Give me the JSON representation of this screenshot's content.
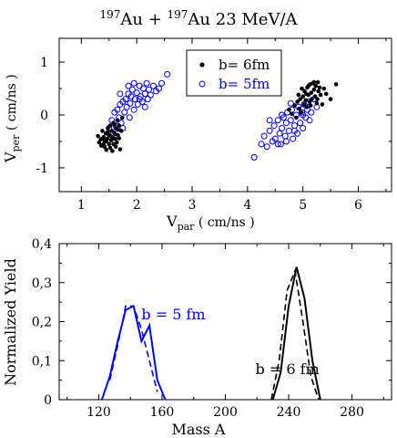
{
  "figure_title": {
    "sup1": "197",
    "el1": "Au",
    "plus": " + ",
    "sup2": "197",
    "el2": "Au",
    "rest": "  23 MeV/A"
  },
  "chart_data": [
    {
      "type": "scatter",
      "xlabel_main": "V",
      "xlabel_sub": "par",
      "xlabel_unit": " ( cm/ns )",
      "ylabel_main": "V",
      "ylabel_sub": "per",
      "ylabel_unit": " ( cm/ns )",
      "xlim": [
        0.6,
        6.6
      ],
      "ylim": [
        -1.45,
        1.45
      ],
      "xticks": [
        1,
        2,
        3,
        4,
        5,
        6
      ],
      "yticks": [
        -1,
        0,
        1
      ],
      "legend_position": "top-center",
      "series": [
        {
          "name": "b= 6fm",
          "marker": "filled-circle",
          "color": "#000000",
          "points": [
            [
              1.3,
              -0.4
            ],
            [
              1.32,
              -0.52
            ],
            [
              1.35,
              -0.46
            ],
            [
              1.38,
              -0.3
            ],
            [
              1.4,
              -0.55
            ],
            [
              1.4,
              -0.42
            ],
            [
              1.42,
              -0.6
            ],
            [
              1.44,
              -0.35
            ],
            [
              1.45,
              -0.5
            ],
            [
              1.47,
              -0.45
            ],
            [
              1.48,
              -0.25
            ],
            [
              1.5,
              -0.55
            ],
            [
              1.5,
              -0.38
            ],
            [
              1.52,
              -0.62
            ],
            [
              1.52,
              -0.2
            ],
            [
              1.54,
              -0.48
            ],
            [
              1.55,
              -0.3
            ],
            [
              1.56,
              -0.42
            ],
            [
              1.58,
              -0.55
            ],
            [
              1.58,
              -0.15
            ],
            [
              1.6,
              -0.35
            ],
            [
              1.61,
              -0.45
            ],
            [
              1.62,
              -0.25
            ],
            [
              1.64,
              -0.52
            ],
            [
              1.65,
              -0.1
            ],
            [
              1.66,
              -0.38
            ],
            [
              1.68,
              -0.2
            ],
            [
              1.7,
              -0.65
            ],
            [
              1.72,
              -0.3
            ],
            [
              1.74,
              -0.05
            ],
            [
              1.45,
              -0.66
            ],
            [
              1.62,
              -0.6
            ],
            [
              1.36,
              -0.58
            ],
            [
              1.56,
              -0.68
            ],
            [
              1.68,
              -0.44
            ],
            [
              1.48,
              -0.32
            ],
            [
              1.6,
              -0.18
            ],
            [
              1.42,
              -0.48
            ],
            [
              1.53,
              -0.4
            ],
            [
              1.66,
              -0.28
            ],
            [
              4.75,
              0.1
            ],
            [
              4.8,
              0.02
            ],
            [
              4.85,
              0.18
            ],
            [
              4.88,
              -0.05
            ],
            [
              4.9,
              0.25
            ],
            [
              4.93,
              0.12
            ],
            [
              4.95,
              0.3
            ],
            [
              4.97,
              0.05
            ],
            [
              5.0,
              0.35
            ],
            [
              5.02,
              0.2
            ],
            [
              5.03,
              0.45
            ],
            [
              5.05,
              0.28
            ],
            [
              5.07,
              0.15
            ],
            [
              5.08,
              0.52
            ],
            [
              5.1,
              0.38
            ],
            [
              5.12,
              0.25
            ],
            [
              5.13,
              0.58
            ],
            [
              5.15,
              0.42
            ],
            [
              5.16,
              0.3
            ],
            [
              5.18,
              0.6
            ],
            [
              5.2,
              0.48
            ],
            [
              5.22,
              0.35
            ],
            [
              5.23,
              0.55
            ],
            [
              5.25,
              0.22
            ],
            [
              5.27,
              0.62
            ],
            [
              5.28,
              0.45
            ],
            [
              5.3,
              0.52
            ],
            [
              5.32,
              0.38
            ],
            [
              5.35,
              0.2
            ],
            [
              5.38,
              0.5
            ],
            [
              5.42,
              0.4
            ],
            [
              5.5,
              0.3
            ],
            [
              5.6,
              0.58
            ],
            [
              4.98,
              0.5
            ],
            [
              5.06,
              0.4
            ],
            [
              5.14,
              0.18
            ],
            [
              5.2,
              0.62
            ],
            [
              5.26,
              0.3
            ],
            [
              5.1,
              0.55
            ],
            [
              4.92,
              0.38
            ]
          ]
        },
        {
          "name": "b= 5fm",
          "marker": "open-circle",
          "color": "#0000ff",
          "points": [
            [
              1.5,
              -0.25
            ],
            [
              1.55,
              -0.1
            ],
            [
              1.58,
              -0.35
            ],
            [
              1.6,
              0.05
            ],
            [
              1.62,
              -0.2
            ],
            [
              1.65,
              0.1
            ],
            [
              1.68,
              -0.05
            ],
            [
              1.7,
              0.2
            ],
            [
              1.72,
              -0.15
            ],
            [
              1.75,
              0.25
            ],
            [
              1.78,
              0.05
            ],
            [
              1.8,
              0.3
            ],
            [
              1.82,
              0.15
            ],
            [
              1.85,
              0.4
            ],
            [
              1.87,
              -0.05
            ],
            [
              1.88,
              0.22
            ],
            [
              1.9,
              0.35
            ],
            [
              1.92,
              0.48
            ],
            [
              1.95,
              0.1
            ],
            [
              1.97,
              0.3
            ],
            [
              2.0,
              0.42
            ],
            [
              2.02,
              0.2
            ],
            [
              2.05,
              0.55
            ],
            [
              2.07,
              0.35
            ],
            [
              2.1,
              0.25
            ],
            [
              2.12,
              0.5
            ],
            [
              2.15,
              0.4
            ],
            [
              2.18,
              0.6
            ],
            [
              2.2,
              0.3
            ],
            [
              2.22,
              0.48
            ],
            [
              2.25,
              0.38
            ],
            [
              2.3,
              0.55
            ],
            [
              2.35,
              0.45
            ],
            [
              2.4,
              0.5
            ],
            [
              2.45,
              0.6
            ],
            [
              2.55,
              0.77
            ],
            [
              1.75,
              -0.25
            ],
            [
              1.85,
              0.55
            ],
            [
              1.95,
              0.6
            ],
            [
              2.05,
              0.3
            ],
            [
              1.7,
              0.4
            ],
            [
              2.15,
              0.15
            ],
            [
              4.12,
              -0.8
            ],
            [
              4.25,
              -0.55
            ],
            [
              4.3,
              -0.4
            ],
            [
              4.35,
              -0.6
            ],
            [
              4.4,
              -0.3
            ],
            [
              4.45,
              -0.5
            ],
            [
              4.48,
              -0.2
            ],
            [
              4.5,
              -0.45
            ],
            [
              4.55,
              -0.1
            ],
            [
              4.58,
              -0.35
            ],
            [
              4.6,
              -0.55
            ],
            [
              4.62,
              -0.25
            ],
            [
              4.65,
              -0.05
            ],
            [
              4.68,
              -0.4
            ],
            [
              4.7,
              -0.15
            ],
            [
              4.72,
              0.05
            ],
            [
              4.75,
              -0.3
            ],
            [
              4.78,
              -0.1
            ],
            [
              4.8,
              0.1
            ],
            [
              4.82,
              -0.45
            ],
            [
              4.85,
              -0.2
            ],
            [
              4.88,
              0.0
            ],
            [
              4.9,
              -0.35
            ],
            [
              4.92,
              0.15
            ],
            [
              4.95,
              -0.15
            ],
            [
              4.98,
              0.05
            ],
            [
              5.0,
              -0.25
            ],
            [
              5.02,
              0.2
            ],
            [
              5.05,
              -0.05
            ],
            [
              5.08,
              0.1
            ],
            [
              5.1,
              0.25
            ],
            [
              5.15,
              0.05
            ],
            [
              5.2,
              0.3
            ],
            [
              5.25,
              0.15
            ],
            [
              4.55,
              -0.55
            ],
            [
              4.7,
              -0.5
            ],
            [
              4.85,
              -0.3
            ],
            [
              5.0,
              0.0
            ],
            [
              4.4,
              -0.1
            ],
            [
              4.62,
              0.0
            ],
            [
              4.78,
              0.22
            ],
            [
              5.12,
              -0.1
            ]
          ]
        }
      ]
    },
    {
      "type": "line",
      "xlabel": "Mass A",
      "ylabel": "Normalized Yield",
      "xlim": [
        95,
        305
      ],
      "ylim": [
        0,
        0.4
      ],
      "xticks": [
        120,
        160,
        200,
        240,
        280
      ],
      "ytick_labels": [
        "0",
        "0,1",
        "0,2",
        "0,3",
        "0,4"
      ],
      "yticks": [
        0,
        0.1,
        0.2,
        0.3,
        0.4
      ],
      "annotations": [
        {
          "text": "b = 5 fm",
          "color": "#0000ff",
          "x": 147,
          "y": 0.22
        },
        {
          "text": "b = 6 fm",
          "color": "#000000",
          "x": 219,
          "y": 0.08
        }
      ],
      "series": [
        {
          "group": "b = 5 fm",
          "style": "solid",
          "color": "#0000ff",
          "x": [
            122,
            127,
            132,
            137,
            142,
            147,
            152,
            157,
            162
          ],
          "y": [
            0,
            0.06,
            0.15,
            0.23,
            0.24,
            0.15,
            0.19,
            0.05,
            0
          ]
        },
        {
          "group": "b = 5 fm",
          "style": "dashed",
          "color": "#0000ff",
          "x": [
            127,
            132,
            137,
            142,
            147,
            152,
            157
          ],
          "y": [
            0.05,
            0.14,
            0.24,
            0.24,
            0.18,
            0.1,
            0.02
          ]
        },
        {
          "group": "b = 6 fm",
          "style": "solid",
          "color": "#000000",
          "x": [
            230,
            235,
            240,
            245,
            250,
            255,
            260
          ],
          "y": [
            0,
            0.07,
            0.24,
            0.34,
            0.26,
            0.1,
            0
          ]
        },
        {
          "group": "b = 6 fm",
          "style": "dashed",
          "color": "#000000",
          "x": [
            229,
            234,
            239,
            244,
            249,
            254,
            259
          ],
          "y": [
            0,
            0.1,
            0.28,
            0.33,
            0.2,
            0.06,
            0
          ]
        }
      ]
    }
  ]
}
